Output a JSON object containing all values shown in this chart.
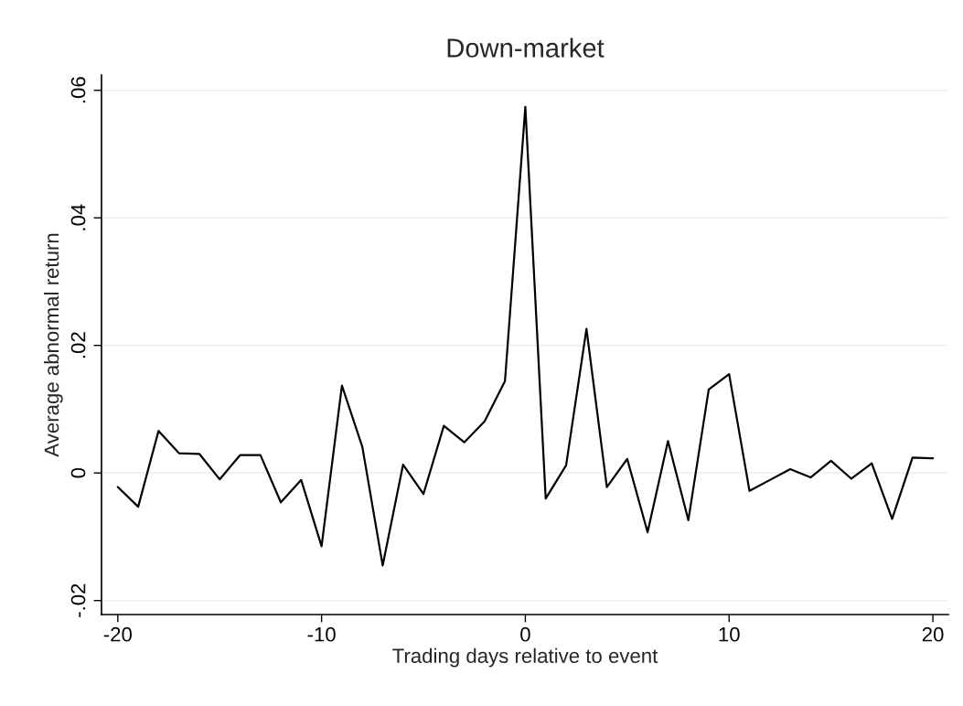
{
  "chart_data": {
    "type": "line",
    "title": "Down-market",
    "xlabel": "Trading days relative to event",
    "ylabel": "Average abnormal return",
    "x": [
      -20,
      -19,
      -18,
      -17,
      -16,
      -15,
      -14,
      -13,
      -12,
      -11,
      -10,
      -9,
      -8,
      -7,
      -6,
      -5,
      -4,
      -3,
      -2,
      -1,
      0,
      1,
      2,
      3,
      4,
      5,
      6,
      7,
      8,
      9,
      10,
      11,
      12,
      13,
      14,
      15,
      16,
      17,
      18,
      19,
      20
    ],
    "series": [
      {
        "color": "#000000",
        "values": [
          -0.0022,
          -0.0053,
          0.0066,
          0.0031,
          0.003,
          -0.001,
          0.0028,
          0.0028,
          -0.0046,
          -0.0011,
          -0.0115,
          0.0137,
          0.0041,
          -0.0145,
          0.0013,
          -0.0033,
          0.0074,
          0.0048,
          0.0081,
          0.0144,
          0.0574,
          -0.004,
          0.0012,
          0.0226,
          -0.0022,
          0.0022,
          -0.0093,
          0.005,
          -0.0074,
          0.0131,
          0.0155,
          -0.0028,
          -0.0011,
          0.0006,
          -0.0007,
          0.0019,
          -0.0009,
          0.0015,
          -0.0072,
          0.0024,
          0.0023
        ]
      }
    ],
    "xlim": [
      -20.8,
      20.76
    ],
    "xticks": [
      -20,
      -10,
      0,
      10,
      20
    ],
    "ylim": [
      -0.0222,
      0.0624
    ],
    "yticks": [
      {
        "value": -0.02,
        "label": "-.02"
      },
      {
        "value": 0,
        "label": "0"
      },
      {
        "value": 0.02,
        "label": ".02"
      },
      {
        "value": 0.04,
        "label": ".04"
      },
      {
        "value": 0.06,
        "label": ".06"
      }
    ],
    "grid": "y",
    "legend": false,
    "marker": "none",
    "line_style": "solid"
  }
}
